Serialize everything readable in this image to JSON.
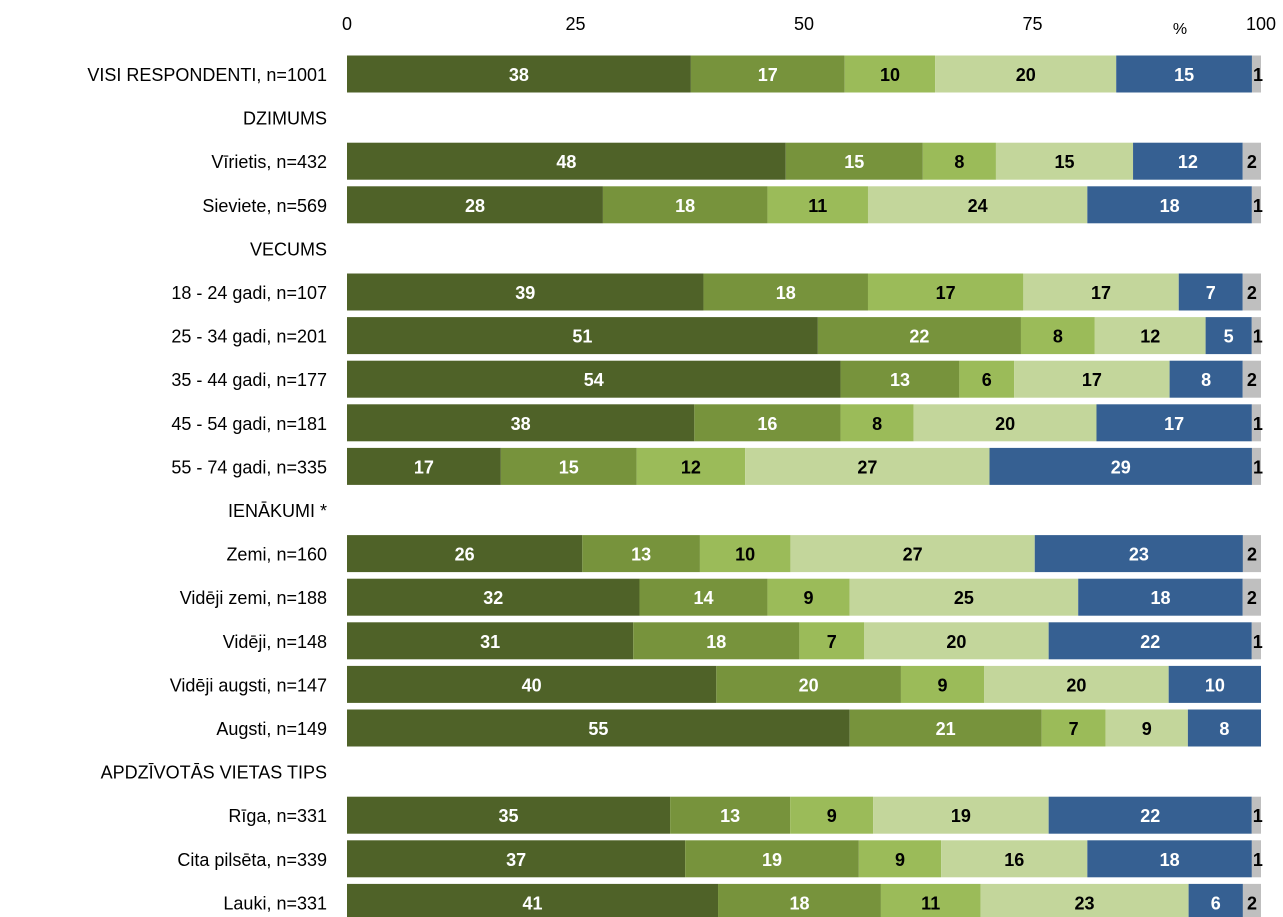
{
  "chart_data": {
    "type": "bar",
    "orientation": "horizontal",
    "stacked": true,
    "unit_label": "%",
    "xlim": [
      0,
      100
    ],
    "x_ticks": [
      0,
      25,
      50,
      75,
      100
    ],
    "grid": false,
    "legend": "none",
    "categories": [
      {
        "label": "VISI RESPONDENTI, n=1001",
        "values": [
          38,
          17,
          10,
          20,
          15,
          1
        ]
      },
      {
        "label": "DZIMUMS",
        "header": true
      },
      {
        "label": "Vīrietis, n=432",
        "values": [
          48,
          15,
          8,
          15,
          12,
          2
        ]
      },
      {
        "label": "Sieviete, n=569",
        "values": [
          28,
          18,
          11,
          24,
          18,
          1
        ]
      },
      {
        "label": "VECUMS",
        "header": true
      },
      {
        "label": "18 - 24 gadi, n=107",
        "values": [
          39,
          18,
          17,
          17,
          7,
          2
        ]
      },
      {
        "label": "25 - 34 gadi, n=201",
        "values": [
          51,
          22,
          8,
          12,
          5,
          1
        ]
      },
      {
        "label": "35 - 44 gadi, n=177",
        "values": [
          54,
          13,
          6,
          17,
          8,
          2
        ]
      },
      {
        "label": "45 - 54 gadi, n=181",
        "values": [
          38,
          16,
          8,
          20,
          17,
          1
        ]
      },
      {
        "label": "55 - 74 gadi, n=335",
        "values": [
          17,
          15,
          12,
          27,
          29,
          1
        ]
      },
      {
        "label": "IENĀKUMI *",
        "header": true
      },
      {
        "label": "Zemi, n=160",
        "values": [
          26,
          13,
          10,
          27,
          23,
          2
        ]
      },
      {
        "label": "Vidēji zemi, n=188",
        "values": [
          32,
          14,
          9,
          25,
          18,
          2
        ]
      },
      {
        "label": "Vidēji, n=148",
        "values": [
          31,
          18,
          7,
          20,
          22,
          1
        ]
      },
      {
        "label": "Vidēji augsti, n=147",
        "values": [
          40,
          20,
          9,
          20,
          10,
          null
        ]
      },
      {
        "label": "Augsti, n=149",
        "values": [
          55,
          21,
          7,
          9,
          8,
          null
        ]
      },
      {
        "label": "APDZĪVOTĀS VIETAS TIPS",
        "header": true
      },
      {
        "label": "Rīga, n=331",
        "values": [
          35,
          13,
          9,
          19,
          22,
          1
        ]
      },
      {
        "label": "Cita pilsēta, n=339",
        "values": [
          37,
          19,
          9,
          16,
          18,
          1
        ]
      },
      {
        "label": "Lauki, n=331",
        "values": [
          41,
          18,
          11,
          23,
          6,
          2
        ]
      }
    ],
    "series_colors": [
      "#4f6228",
      "#77933c",
      "#9bbb59",
      "#c3d69b",
      "#366092",
      "#bfbfbf"
    ],
    "label_colors": [
      "#ffffff",
      "#ffffff",
      "#000000",
      "#000000",
      "#ffffff",
      "#000000"
    ]
  }
}
